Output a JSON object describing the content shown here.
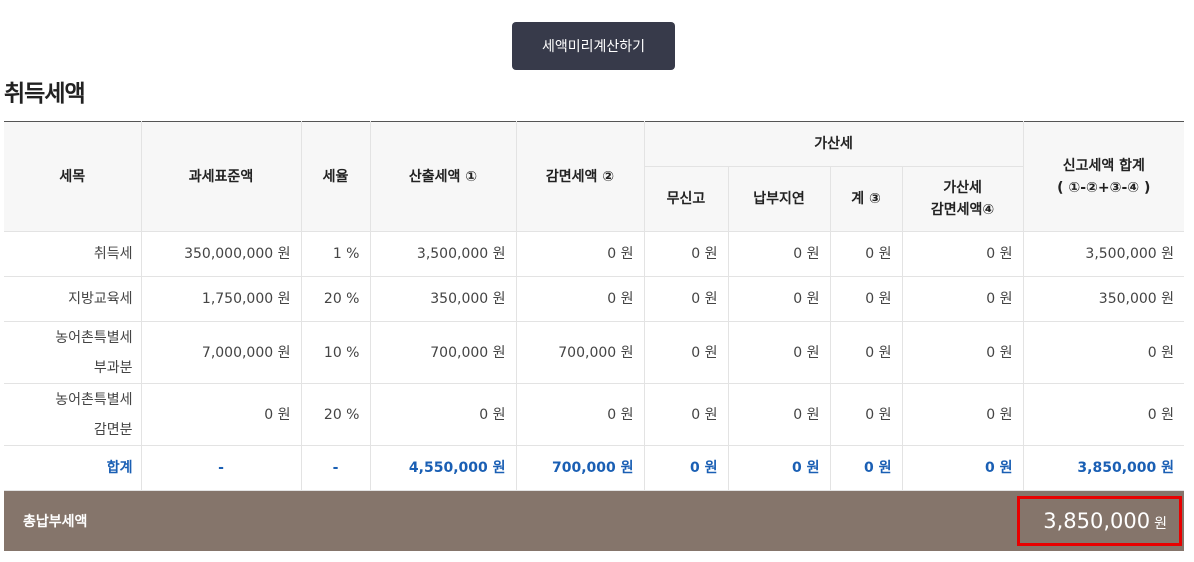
{
  "calc_button_label": "세액미리계산하기",
  "section_title": "취득세액",
  "headers": {
    "tax_item": "세목",
    "tax_base": "과세표준액",
    "tax_rate": "세율",
    "calculated_tax": "산출세액 ①",
    "reduced_tax": "감면세액 ②",
    "penalty_group": "가산세",
    "no_report": "무신고",
    "late_payment": "납부지연",
    "penalty_sum": "계 ③",
    "penalty_reduction_line1": "가산세",
    "penalty_reduction_line2": "감면세액④",
    "reported_total_line1": "신고세액 합계",
    "reported_total_line2": "( ①-②+③-④ )"
  },
  "rows": [
    {
      "name_line1": "취득세",
      "name_line2": "",
      "base": "350,000,000 원",
      "rate": "1 %",
      "calc": "3,500,000 원",
      "reduced": "0 원",
      "no_report": "0 원",
      "late": "0 원",
      "penalty_sum": "0 원",
      "penalty_reduction": "0 원",
      "total": "3,500,000 원"
    },
    {
      "name_line1": "지방교육세",
      "name_line2": "",
      "base": "1,750,000 원",
      "rate": "20 %",
      "calc": "350,000 원",
      "reduced": "0 원",
      "no_report": "0 원",
      "late": "0 원",
      "penalty_sum": "0 원",
      "penalty_reduction": "0 원",
      "total": "350,000 원"
    },
    {
      "name_line1": "농어촌특별세",
      "name_line2": "부과분",
      "base": "7,000,000 원",
      "rate": "10 %",
      "calc": "700,000 원",
      "reduced": "700,000 원",
      "no_report": "0 원",
      "late": "0 원",
      "penalty_sum": "0 원",
      "penalty_reduction": "0 원",
      "total": "0 원"
    },
    {
      "name_line1": "농어촌특별세",
      "name_line2": "감면분",
      "base": "0 원",
      "rate": "20 %",
      "calc": "0 원",
      "reduced": "0 원",
      "no_report": "0 원",
      "late": "0 원",
      "penalty_sum": "0 원",
      "penalty_reduction": "0 원",
      "total": "0 원"
    }
  ],
  "total_row": {
    "label": "합계",
    "base": "-",
    "rate": "-",
    "calc": "4,550,000 원",
    "reduced": "700,000 원",
    "no_report": "0 원",
    "late": "0 원",
    "penalty_sum": "0 원",
    "penalty_reduction": "0 원",
    "total": "3,850,000 원"
  },
  "footer": {
    "label": "총납부세액",
    "amount": "3,850,000",
    "unit": "원"
  },
  "colors": {
    "button_bg": "#373a4a",
    "total_text": "#1a5fb4",
    "footer_bg": "#85756b",
    "highlight_border": "#e80000"
  }
}
